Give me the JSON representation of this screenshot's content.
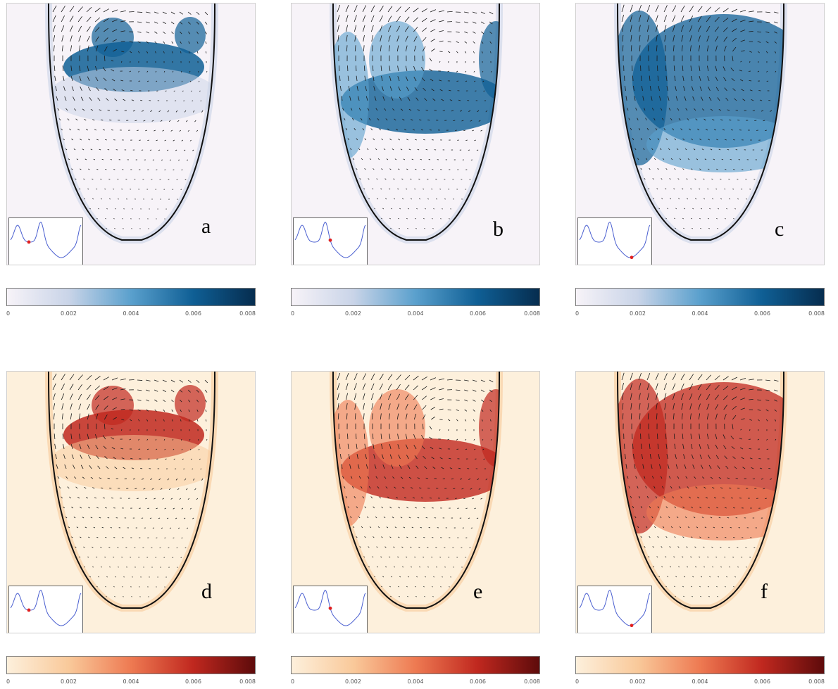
{
  "panels": [
    {
      "id": "a",
      "label": "a",
      "scheme": "blue",
      "marker_t": 0.26
    },
    {
      "id": "b",
      "label": "b",
      "scheme": "blue",
      "marker_t": 0.5
    },
    {
      "id": "c",
      "label": "c",
      "scheme": "blue",
      "marker_t": 0.74
    },
    {
      "id": "d",
      "label": "d",
      "scheme": "red",
      "marker_t": 0.26
    },
    {
      "id": "e",
      "label": "e",
      "scheme": "red",
      "marker_t": 0.5
    },
    {
      "id": "f",
      "label": "f",
      "scheme": "red",
      "marker_t": 0.74
    }
  ],
  "colorbar": {
    "ticks": [
      "0",
      "0.002",
      "0.004",
      "0.006",
      "0.008"
    ],
    "blue_stops": [
      "#f7f3f8",
      "#c9d4e8",
      "#5aa0cd",
      "#0f5f95",
      "#062d4f"
    ],
    "red_stops": [
      "#fdf0dc",
      "#f9c99a",
      "#ee7a52",
      "#c0281f",
      "#5e0b0b"
    ]
  },
  "colors": {
    "outline": "#111111",
    "arrow": "#1a1a1a",
    "curve": "#4a5fd0",
    "marker": "#e02020"
  }
}
